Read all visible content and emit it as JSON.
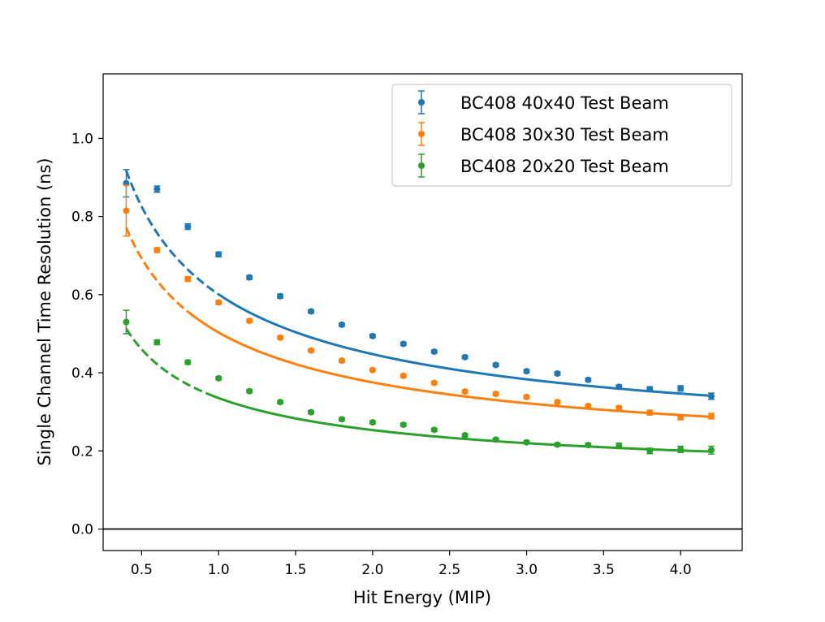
{
  "chart_data": {
    "type": "scatter",
    "title": "",
    "xlabel": "Hit Energy (MIP)",
    "ylabel": "Single Channel Time Resolution (ns)",
    "xlim": [
      0.25,
      4.4
    ],
    "ylim": [
      -0.055,
      1.165
    ],
    "x_ticks": [
      0.5,
      1.0,
      1.5,
      2.0,
      2.5,
      3.0,
      3.5,
      4.0
    ],
    "x_tick_labels": [
      "0.5",
      "1.0",
      "1.5",
      "2.0",
      "2.5",
      "3.0",
      "3.5",
      "4.0"
    ],
    "y_ticks": [
      0.0,
      0.2,
      0.4,
      0.6,
      0.8,
      1.0
    ],
    "y_tick_labels": [
      "0.0",
      "0.2",
      "0.4",
      "0.6",
      "0.8",
      "1.0"
    ],
    "hline": 0.0,
    "legend_position": "top-right",
    "x": [
      0.4,
      0.6,
      0.8,
      1.0,
      1.2,
      1.4,
      1.6,
      1.8,
      2.0,
      2.2,
      2.4,
      2.6,
      2.8,
      3.0,
      3.2,
      3.4,
      3.6,
      3.8,
      4.0,
      4.2
    ],
    "series": [
      {
        "name": "BC408 40x40 Test Beam",
        "color": "#1f77b4",
        "values": [
          0.885,
          0.87,
          0.774,
          0.703,
          0.644,
          0.596,
          0.557,
          0.523,
          0.494,
          0.474,
          0.454,
          0.44,
          0.42,
          0.404,
          0.398,
          0.382,
          0.364,
          0.358,
          0.36,
          0.34
        ],
        "errors": [
          0.035,
          0.008,
          0.007,
          0.006,
          0.005,
          0.005,
          0.004,
          0.004,
          0.004,
          0.004,
          0.004,
          0.004,
          0.004,
          0.004,
          0.004,
          0.004,
          0.005,
          0.006,
          0.007,
          0.008
        ],
        "fit": {
          "a": 0.2,
          "b": 0.5664,
          "c": 0.0,
          "solid_from": 1.0
        }
      },
      {
        "name": "BC408 30x30 Test Beam",
        "color": "#ff7f0e",
        "values": [
          0.815,
          0.714,
          0.64,
          0.58,
          0.533,
          0.49,
          0.457,
          0.431,
          0.407,
          0.392,
          0.374,
          0.352,
          0.346,
          0.338,
          0.325,
          0.315,
          0.31,
          0.298,
          0.286,
          0.289
        ],
        "errors": [
          0.065,
          0.006,
          0.006,
          0.005,
          0.004,
          0.004,
          0.004,
          0.004,
          0.004,
          0.004,
          0.004,
          0.004,
          0.004,
          0.004,
          0.004,
          0.004,
          0.005,
          0.006,
          0.006,
          0.007
        ],
        "fit": {
          "a": 0.172,
          "b": 0.471,
          "c": 0.042,
          "solid_from": 0.8
        }
      },
      {
        "name": "BC408 20x20 Test Beam",
        "color": "#2ca02c",
        "values": [
          0.53,
          0.478,
          0.427,
          0.386,
          0.353,
          0.325,
          0.299,
          0.281,
          0.273,
          0.267,
          0.254,
          0.24,
          0.229,
          0.222,
          0.216,
          0.215,
          0.213,
          0.2,
          0.204,
          0.202
        ],
        "errors": [
          0.03,
          0.006,
          0.005,
          0.004,
          0.004,
          0.004,
          0.004,
          0.004,
          0.004,
          0.004,
          0.004,
          0.004,
          0.004,
          0.004,
          0.004,
          0.005,
          0.007,
          0.007,
          0.008,
          0.01
        ],
        "fit": {
          "a": 0.13,
          "b": 0.306,
          "c": 0.0436,
          "solid_from": 0.95
        }
      }
    ]
  }
}
